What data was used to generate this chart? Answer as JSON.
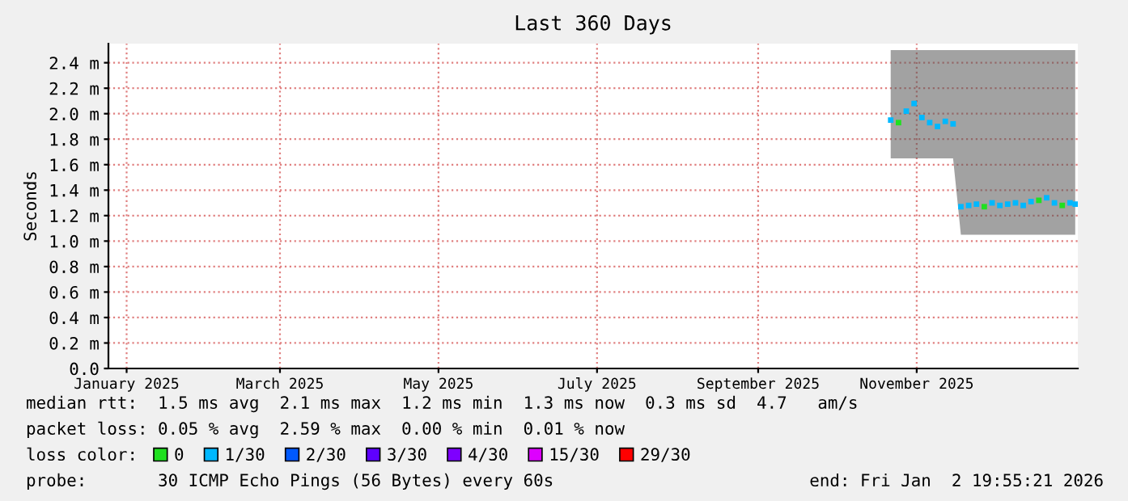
{
  "chart_data": {
    "type": "scatter",
    "title": "Last 360 Days",
    "ylabel": "Seconds",
    "x": [
      "2025-10-22",
      "2025-10-25",
      "2025-10-28",
      "2025-10-31",
      "2025-11-03",
      "2025-11-06",
      "2025-11-09",
      "2025-11-12",
      "2025-11-15",
      "2025-11-18",
      "2025-11-21",
      "2025-11-24",
      "2025-11-27",
      "2025-11-30",
      "2025-12-03",
      "2025-12-06",
      "2025-12-09",
      "2025-12-12",
      "2025-12-15",
      "2025-12-18",
      "2025-12-21",
      "2025-12-24",
      "2025-12-27",
      "2025-12-30",
      "2026-01-01"
    ],
    "series": [
      {
        "name": "0",
        "color": "#20e020",
        "values": [
          null,
          1.93,
          null,
          null,
          null,
          null,
          null,
          null,
          null,
          null,
          null,
          null,
          1.27,
          null,
          null,
          null,
          null,
          null,
          null,
          1.32,
          null,
          null,
          1.28,
          null,
          null
        ]
      },
      {
        "name": "1/30",
        "color": "#00b8ff",
        "values": [
          1.95,
          null,
          2.02,
          2.08,
          1.97,
          1.93,
          1.9,
          1.94,
          1.92,
          1.27,
          1.28,
          1.29,
          null,
          1.3,
          1.28,
          1.29,
          1.3,
          1.28,
          1.31,
          null,
          1.34,
          1.3,
          null,
          1.3,
          1.29
        ],
        "lower": [
          1.65,
          1.65,
          1.65,
          1.65,
          1.65,
          1.65,
          1.65,
          1.65,
          1.65,
          1.05,
          1.05,
          1.05,
          1.05,
          1.05,
          1.05,
          1.05,
          1.05,
          1.05,
          1.05,
          1.05,
          1.05,
          1.05,
          1.05,
          1.05,
          1.05
        ],
        "upper": [
          2.5,
          2.5,
          2.5,
          2.5,
          2.5,
          2.5,
          2.5,
          2.5,
          2.5,
          2.5,
          2.5,
          2.5,
          2.5,
          2.5,
          2.5,
          2.5,
          2.5,
          2.5,
          2.5,
          2.5,
          2.5,
          2.5,
          2.5,
          2.5,
          2.5
        ]
      },
      {
        "name": "2/30",
        "color": "#0059ff",
        "values": [
          null,
          null,
          null,
          null,
          null,
          null,
          null,
          null,
          null,
          null,
          null,
          null,
          null,
          null,
          null,
          null,
          null,
          null,
          null,
          null,
          null,
          null,
          null,
          null,
          null
        ]
      },
      {
        "name": "3/30",
        "color": "#5e00ff",
        "values": [
          null,
          null,
          null,
          null,
          null,
          null,
          null,
          null,
          null,
          null,
          null,
          null,
          null,
          null,
          null,
          null,
          null,
          null,
          null,
          null,
          null,
          null,
          null,
          null,
          null
        ]
      },
      {
        "name": "4/30",
        "color": "#7e00ff",
        "values": [
          null,
          null,
          null,
          null,
          null,
          null,
          null,
          null,
          null,
          null,
          null,
          null,
          null,
          null,
          null,
          null,
          null,
          null,
          null,
          null,
          null,
          null,
          null,
          null,
          null
        ]
      },
      {
        "name": "15/30",
        "color": "#dd00ff",
        "values": [
          null,
          null,
          null,
          null,
          null,
          null,
          null,
          null,
          null,
          null,
          null,
          null,
          null,
          null,
          null,
          null,
          null,
          null,
          null,
          null,
          null,
          null,
          null,
          null,
          null
        ]
      },
      {
        "name": "29/30",
        "color": "#ff0000",
        "values": [
          null,
          null,
          null,
          null,
          null,
          null,
          null,
          null,
          null,
          null,
          null,
          null,
          null,
          null,
          null,
          null,
          null,
          null,
          null,
          null,
          null,
          null,
          null,
          null,
          null
        ]
      }
    ],
    "xlim": [
      "2024-12-25",
      "2026-01-02"
    ],
    "xticks": [
      {
        "value": "2025-01-01",
        "label": "January 2025"
      },
      {
        "value": "2025-03-01",
        "label": "March 2025"
      },
      {
        "value": "2025-05-01",
        "label": "May 2025"
      },
      {
        "value": "2025-07-01",
        "label": "July 2025"
      },
      {
        "value": "2025-09-01",
        "label": "September 2025"
      },
      {
        "value": "2025-11-01",
        "label": "November 2025"
      }
    ],
    "ylim": [
      0,
      2.55
    ],
    "yticks": [
      {
        "value": 0,
        "label": "0.0"
      },
      {
        "value": 0.2,
        "label": "0.2 m"
      },
      {
        "value": 0.4,
        "label": "0.4 m"
      },
      {
        "value": 0.6,
        "label": "0.6 m"
      },
      {
        "value": 0.8,
        "label": "0.8 m"
      },
      {
        "value": 1.0,
        "label": "1.0 m"
      },
      {
        "value": 1.2,
        "label": "1.2 m"
      },
      {
        "value": 1.4,
        "label": "1.4 m"
      },
      {
        "value": 1.6,
        "label": "1.6 m"
      },
      {
        "value": 1.8,
        "label": "1.8 m"
      },
      {
        "value": 2.0,
        "label": "2.0 m"
      },
      {
        "value": 2.2,
        "label": "2.2 m"
      },
      {
        "value": 2.4,
        "label": "2.4 m"
      }
    ],
    "grid": true,
    "marker": "square",
    "legend": "bottom",
    "annotations": [
      "median rtt:  1.5 ms avg  2.1 ms max  1.2 ms min  1.3 ms now  0.3 ms sd  4.7   am/s",
      "packet loss: 0.05 % avg  2.59 % max  0.00 % min  0.01 % now",
      "loss color:",
      "probe:       30 ICMP Echo Pings (56 Bytes) every 60s",
      "end: Fri Jan  2 19:55:21 2026"
    ]
  }
}
